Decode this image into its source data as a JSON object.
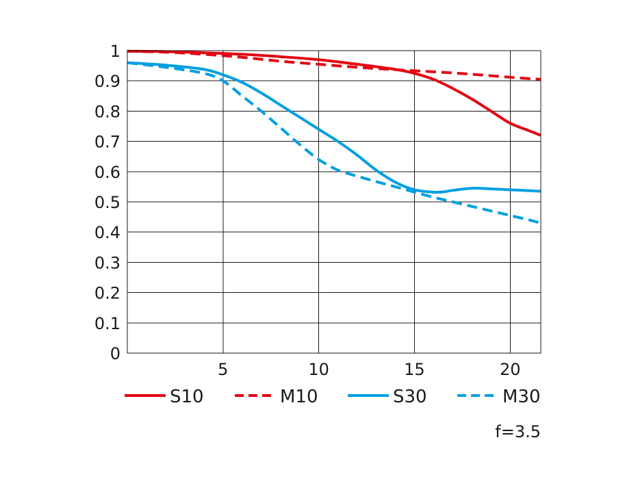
{
  "chart_data": {
    "type": "line",
    "title": "",
    "xlabel": "",
    "ylabel": "",
    "xlim": [
      0,
      21.6
    ],
    "ylim": [
      0,
      1
    ],
    "xticks": [
      5,
      10,
      15,
      20
    ],
    "yticks": [
      0,
      0.1,
      0.2,
      0.3,
      0.4,
      0.5,
      0.6,
      0.7,
      0.8,
      0.9,
      1
    ],
    "ytick_labels": [
      "0",
      "0.1",
      "0.2",
      "0.3",
      "0.4",
      "0.5",
      "0.6",
      "0.7",
      "0.8",
      "0.9",
      "1"
    ],
    "grid": true,
    "legend_position": "bottom",
    "annotation": "f=3.5",
    "series": [
      {
        "name": "S10",
        "color": "#e30613",
        "dash": "solid",
        "x": [
          0,
          2,
          4,
          6,
          8,
          10,
          12,
          14,
          15,
          16,
          17,
          18,
          19,
          20,
          21,
          21.6
        ],
        "y": [
          0.998,
          0.997,
          0.993,
          0.988,
          0.98,
          0.97,
          0.955,
          0.938,
          0.925,
          0.905,
          0.875,
          0.84,
          0.8,
          0.76,
          0.735,
          0.72
        ]
      },
      {
        "name": "M10",
        "color": "#e30613",
        "dash": "dashed",
        "x": [
          0,
          2,
          4,
          6,
          8,
          10,
          12,
          14,
          16,
          18,
          20,
          21.6
        ],
        "y": [
          0.998,
          0.995,
          0.988,
          0.978,
          0.965,
          0.955,
          0.945,
          0.937,
          0.93,
          0.922,
          0.912,
          0.905
        ]
      },
      {
        "name": "S30",
        "color": "#009fe3",
        "dash": "solid",
        "x": [
          0,
          2,
          4,
          5,
          6,
          7,
          8,
          9,
          10,
          11,
          12,
          13,
          14,
          15,
          16,
          16.5,
          17,
          18,
          19,
          20,
          21,
          21.6
        ],
        "y": [
          0.96,
          0.952,
          0.938,
          0.92,
          0.895,
          0.86,
          0.82,
          0.78,
          0.74,
          0.7,
          0.655,
          0.605,
          0.565,
          0.54,
          0.532,
          0.533,
          0.538,
          0.545,
          0.543,
          0.54,
          0.537,
          0.535
        ]
      },
      {
        "name": "M30",
        "color": "#009fe3",
        "dash": "dashed",
        "x": [
          0,
          2,
          4,
          5,
          6,
          7,
          8,
          9,
          10,
          11,
          12,
          13,
          14,
          15,
          16,
          17,
          18,
          19,
          20,
          21,
          21.6
        ],
        "y": [
          0.96,
          0.945,
          0.925,
          0.9,
          0.85,
          0.8,
          0.745,
          0.69,
          0.64,
          0.605,
          0.585,
          0.567,
          0.55,
          0.532,
          0.515,
          0.5,
          0.485,
          0.47,
          0.455,
          0.44,
          0.43
        ]
      }
    ]
  }
}
